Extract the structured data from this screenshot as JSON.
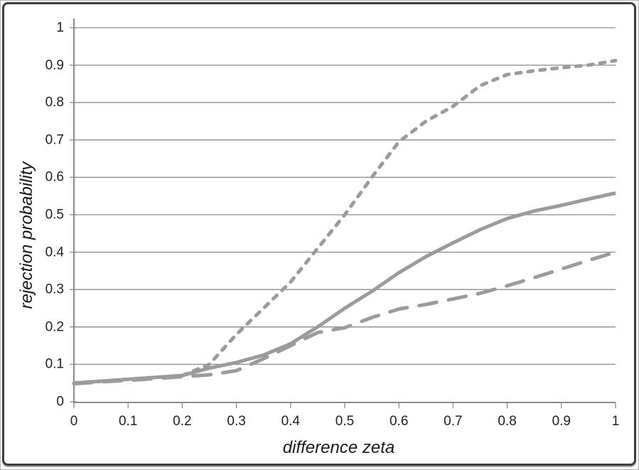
{
  "figure": {
    "background": "#ffffff",
    "outer_edge_color": "#b3b3b3",
    "border_color": "#3d3d3d"
  },
  "chart_data": {
    "type": "line",
    "title": "",
    "xlabel": "difference zeta",
    "ylabel": "rejection probability",
    "xlim": [
      0,
      1
    ],
    "ylim": [
      0,
      1
    ],
    "grid": "horizontal-only",
    "legend": "none",
    "x_ticks": [
      "0",
      "0.1",
      "0.2",
      "0.3",
      "0.4",
      "0.5",
      "0.6",
      "0.7",
      "0.8",
      "0.9",
      "1"
    ],
    "y_ticks": [
      "0",
      "0.1",
      "0.2",
      "0.3",
      "0.4",
      "0.5",
      "0.6",
      "0.7",
      "0.8",
      "0.9",
      "1"
    ],
    "series_color": "#9b9b9b",
    "gridline_color": "#8a8a8a",
    "axis_color": "#8a8a8a",
    "tick_text_color": "#212121",
    "x": [
      0,
      0.05,
      0.1,
      0.15,
      0.2,
      0.25,
      0.3,
      0.35,
      0.4,
      0.45,
      0.5,
      0.55,
      0.6,
      0.65,
      0.7,
      0.75,
      0.8,
      0.85,
      0.9,
      0.95,
      1.0
    ],
    "series": [
      {
        "name": "short-dashed",
        "line_style": "short-dash",
        "values": [
          0.05,
          0.055,
          0.06,
          0.065,
          0.07,
          0.1,
          0.18,
          0.25,
          0.32,
          0.41,
          0.5,
          0.6,
          0.695,
          0.75,
          0.79,
          0.845,
          0.875,
          0.885,
          0.893,
          0.9,
          0.912
        ]
      },
      {
        "name": "solid",
        "line_style": "solid",
        "values": [
          0.05,
          0.055,
          0.06,
          0.065,
          0.07,
          0.09,
          0.105,
          0.125,
          0.155,
          0.2,
          0.25,
          0.295,
          0.345,
          0.388,
          0.425,
          0.46,
          0.49,
          0.51,
          0.525,
          0.542,
          0.558
        ]
      },
      {
        "name": "long-dashed",
        "line_style": "long-dash",
        "values": [
          0.048,
          0.053,
          0.057,
          0.062,
          0.067,
          0.072,
          0.083,
          0.115,
          0.15,
          0.185,
          0.198,
          0.225,
          0.248,
          0.26,
          0.275,
          0.29,
          0.31,
          0.332,
          0.355,
          0.378,
          0.4
        ]
      }
    ]
  }
}
